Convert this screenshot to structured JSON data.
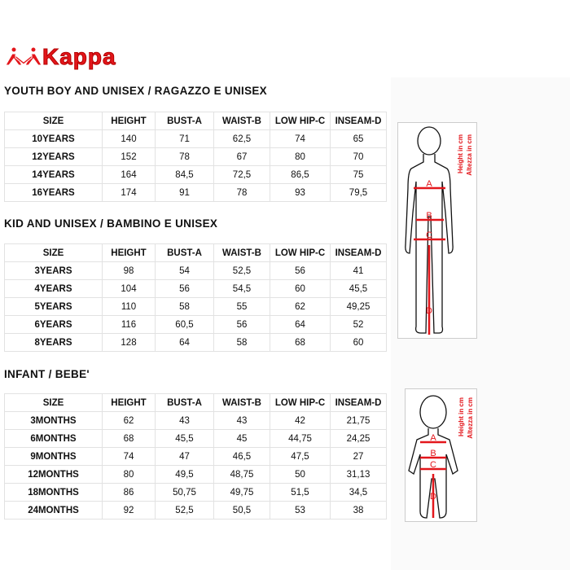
{
  "brand": {
    "name": "Kappa",
    "color": "#e3161b"
  },
  "sections": [
    {
      "title": "YOUTH BOY AND UNISEX / RAGAZZO E UNISEX",
      "headers": [
        "SIZE",
        "HEIGHT",
        "BUST-A",
        "WAIST-B",
        "LOW HIP-C",
        "INSEAM-D"
      ],
      "rows": [
        [
          "10YEARS",
          "140",
          "71",
          "62,5",
          "74",
          "65"
        ],
        [
          "12YEARS",
          "152",
          "78",
          "67",
          "80",
          "70"
        ],
        [
          "14YEARS",
          "164",
          "84,5",
          "72,5",
          "86,5",
          "75"
        ],
        [
          "16YEARS",
          "174",
          "91",
          "78",
          "93",
          "79,5"
        ]
      ]
    },
    {
      "title": "KID AND UNISEX / BAMBINO E UNISEX",
      "headers": [
        "SIZE",
        "HEIGHT",
        "BUST-A",
        "WAIST-B",
        "LOW HIP-C",
        "INSEAM-D"
      ],
      "rows": [
        [
          "3YEARS",
          "98",
          "54",
          "52,5",
          "56",
          "41"
        ],
        [
          "4YEARS",
          "104",
          "56",
          "54,5",
          "60",
          "45,5"
        ],
        [
          "5YEARS",
          "110",
          "58",
          "55",
          "62",
          "49,25"
        ],
        [
          "6YEARS",
          "116",
          "60,5",
          "56",
          "64",
          "52"
        ],
        [
          "8YEARS",
          "128",
          "64",
          "58",
          "68",
          "60"
        ]
      ]
    },
    {
      "title": "INFANT / BEBE'",
      "headers": [
        "SIZE",
        "HEIGHT",
        "BUST-A",
        "WAIST-B",
        "LOW HIP-C",
        "INSEAM-D"
      ],
      "rows": [
        [
          "3MONTHS",
          "62",
          "43",
          "43",
          "42",
          "21,75"
        ],
        [
          "6MONTHS",
          "68",
          "45,5",
          "45",
          "44,75",
          "24,25"
        ],
        [
          "9MONTHS",
          "74",
          "47",
          "46,5",
          "47,5",
          "27"
        ],
        [
          "12MONTHS",
          "80",
          "49,5",
          "48,75",
          "50",
          "31,13"
        ],
        [
          "18MONTHS",
          "86",
          "50,75",
          "49,75",
          "51,5",
          "34,5"
        ],
        [
          "24MONTHS",
          "92",
          "52,5",
          "50,5",
          "53",
          "38"
        ]
      ]
    }
  ],
  "figure": {
    "height_label": "Height in cm",
    "altezza_label": "Altezza in cm",
    "markers": [
      "A",
      "B",
      "C",
      "D"
    ]
  }
}
